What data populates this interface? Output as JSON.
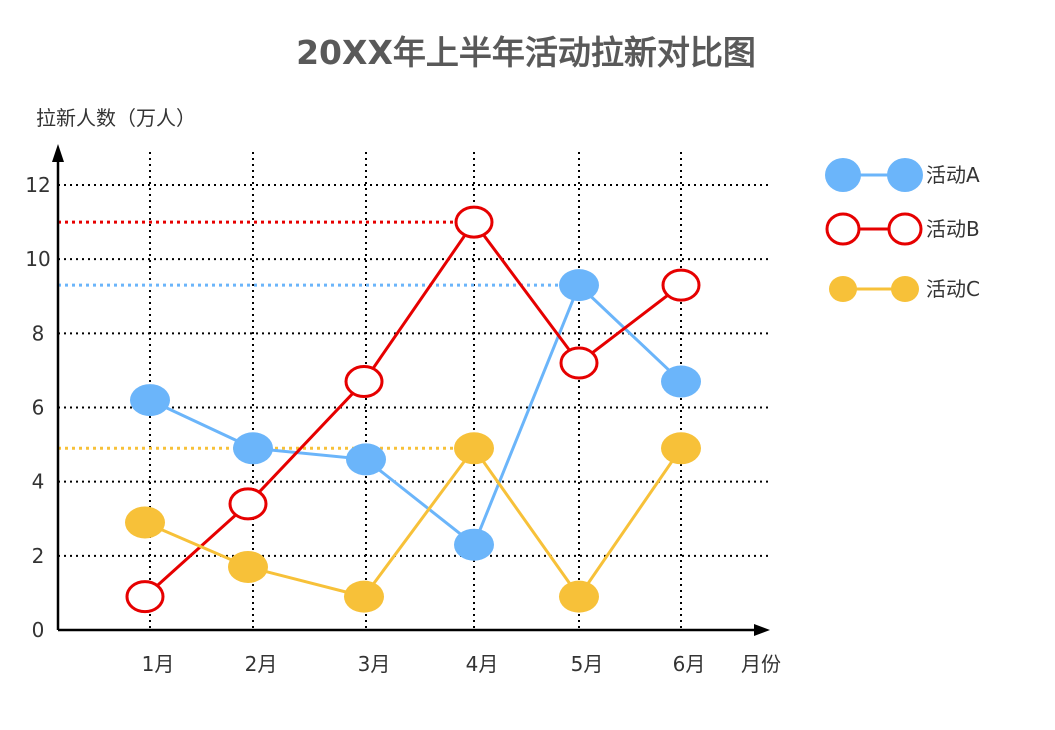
{
  "colors": {
    "activity_a": "#6BB5FA",
    "activity_b": "#E60000",
    "activity_c": "#F7C139",
    "grid": "#000000",
    "title": "#595959"
  },
  "chart_data": {
    "type": "line",
    "title": "20XX年上半年活动拉新对比图",
    "xlabel": "月份",
    "ylabel": "拉新人数（万人）",
    "categories": [
      "1月",
      "2月",
      "3月",
      "4月",
      "5月",
      "6月"
    ],
    "y_ticks": [
      "0",
      "2",
      "4",
      "6",
      "8",
      "10",
      "12"
    ],
    "ylim": [
      0,
      12
    ],
    "grid": true,
    "legend_position": "top-right",
    "series": [
      {
        "name": "活动A",
        "marker": "filled",
        "values": [
          6.2,
          4.9,
          4.6,
          2.3,
          9.3,
          6.7
        ],
        "peak_reference": 9.3
      },
      {
        "name": "活动B",
        "marker": "hollow",
        "values": [
          0.9,
          3.4,
          6.7,
          11.0,
          7.2,
          9.3
        ],
        "peak_reference": 11.0
      },
      {
        "name": "活动C",
        "marker": "filled-small",
        "values": [
          2.9,
          1.7,
          0.9,
          4.9,
          0.9,
          4.9
        ],
        "peak_reference": 4.9
      }
    ]
  }
}
